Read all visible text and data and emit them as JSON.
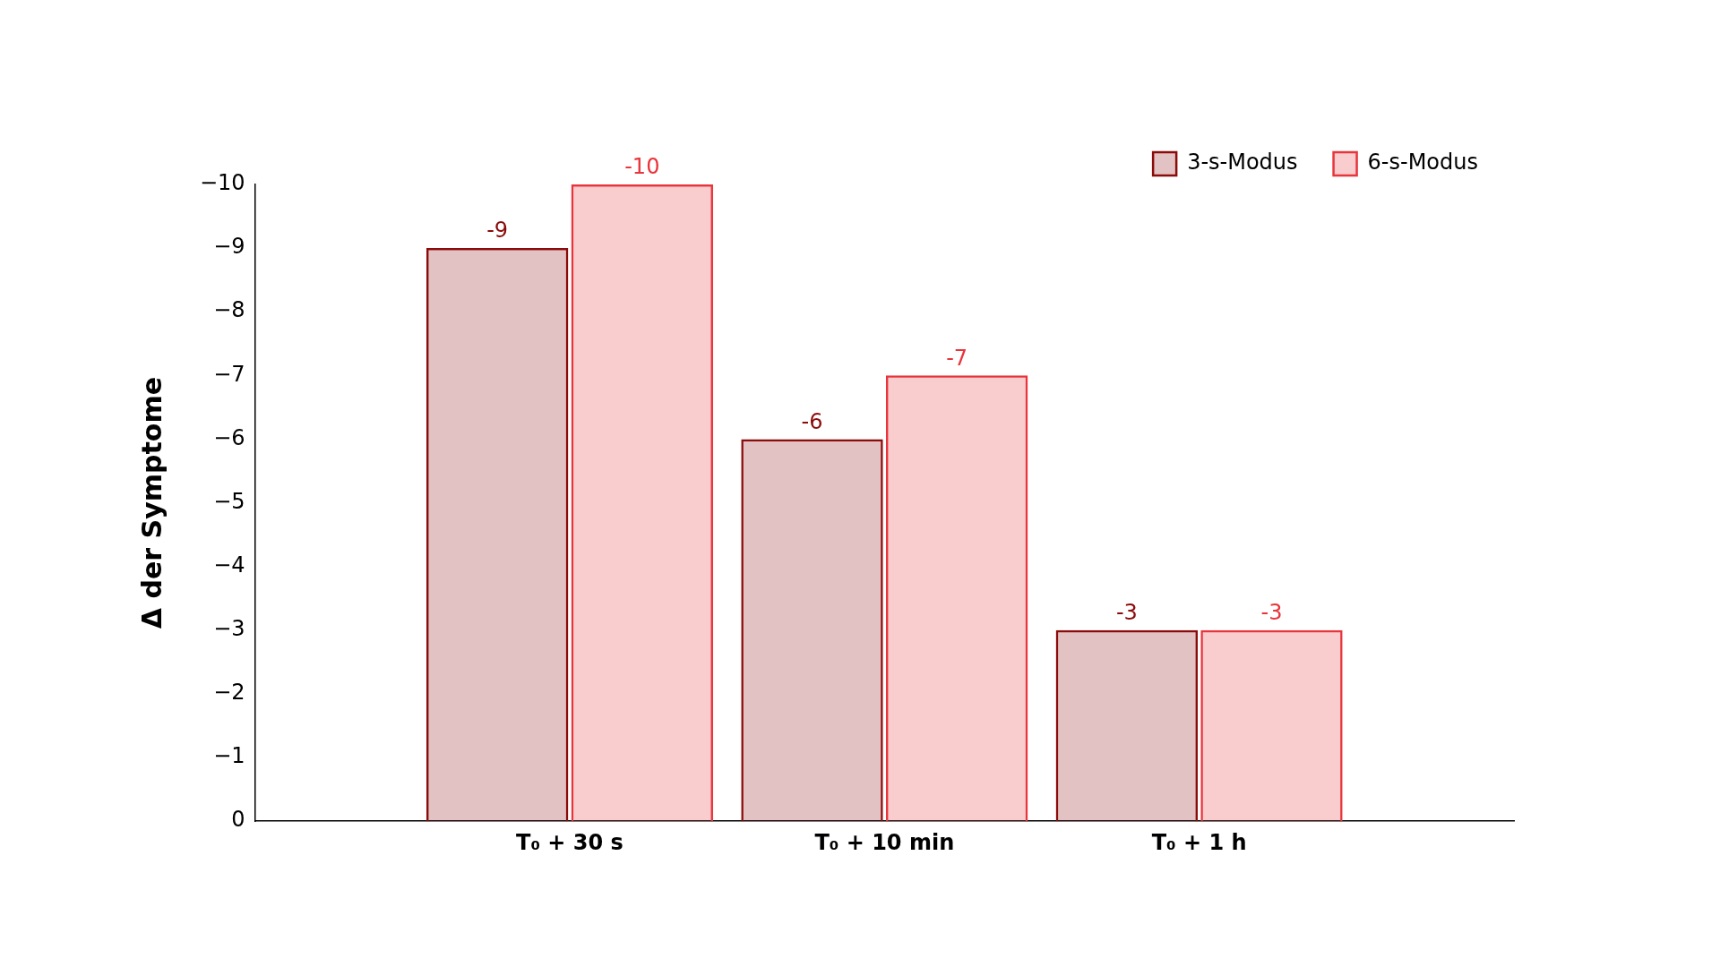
{
  "chart_data": {
    "type": "bar",
    "ylabel": "Δ der Symptome",
    "categories": [
      "T₀ + 30 s",
      "T₀ + 10 min",
      "T₀ + 1 h"
    ],
    "series": [
      {
        "name": "3-s-Modus",
        "color": "#8b0a0a",
        "values": [
          -9,
          -6,
          -3
        ]
      },
      {
        "name": "6-s-Modus",
        "color": "#e8353b",
        "values": [
          -10,
          -7,
          -3
        ]
      }
    ],
    "ylim": [
      0,
      -10
    ],
    "yticks": [
      {
        "value": 0,
        "label": "0"
      },
      {
        "value": -1,
        "label": "−1"
      },
      {
        "value": -2,
        "label": "−2"
      },
      {
        "value": -3,
        "label": "−3"
      },
      {
        "value": -4,
        "label": "−4"
      },
      {
        "value": -5,
        "label": "−5"
      },
      {
        "value": -6,
        "label": "−6"
      },
      {
        "value": -7,
        "label": "−7"
      },
      {
        "value": -8,
        "label": "−8"
      },
      {
        "value": -9,
        "label": "−9"
      },
      {
        "value": -10,
        "label": "−10"
      }
    ],
    "data_labels": true,
    "legend": "top right",
    "grid": false
  }
}
